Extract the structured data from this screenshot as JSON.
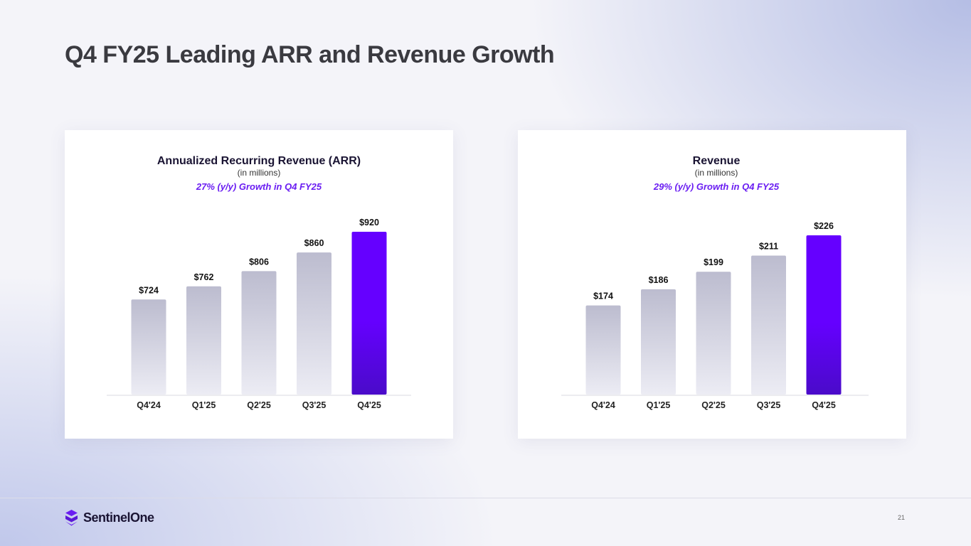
{
  "slide": {
    "title": "Q4 FY25 Leading ARR and Revenue Growth",
    "logo_text": "SentinelOne",
    "page_number": "21"
  },
  "colors": {
    "highlight_top": "#6500ff",
    "highlight_bottom": "#4a0bc9",
    "bar_top": "#bcbccf",
    "bar_bottom": "#ececf4",
    "accent_text": "#6a1df2"
  },
  "chart_data": [
    {
      "type": "bar",
      "title": "Annualized Recurring Revenue (ARR)",
      "subtitle": "(in millions)",
      "growth": "27% (y/y) Growth in Q4 FY25",
      "categories": [
        "Q4'24",
        "Q1'25",
        "Q2'25",
        "Q3'25",
        "Q4'25"
      ],
      "values": [
        724,
        762,
        806,
        860,
        920
      ],
      "value_labels": [
        "$724",
        "$762",
        "$806",
        "$860",
        "$920"
      ],
      "highlight_index": 4,
      "xlabel": "",
      "ylabel": "",
      "ylim": [
        0,
        920
      ],
      "grid": false
    },
    {
      "type": "bar",
      "title": "Revenue",
      "subtitle": "(in millions)",
      "growth": "29% (y/y) Growth in Q4 FY25",
      "categories": [
        "Q4'24",
        "Q1'25",
        "Q2'25",
        "Q3'25",
        "Q4'25"
      ],
      "values": [
        174,
        186,
        199,
        211,
        226
      ],
      "value_labels": [
        "$174",
        "$186",
        "$199",
        "$211",
        "$226"
      ],
      "highlight_index": 4,
      "xlabel": "",
      "ylabel": "",
      "ylim": [
        0,
        226
      ],
      "grid": false
    }
  ]
}
